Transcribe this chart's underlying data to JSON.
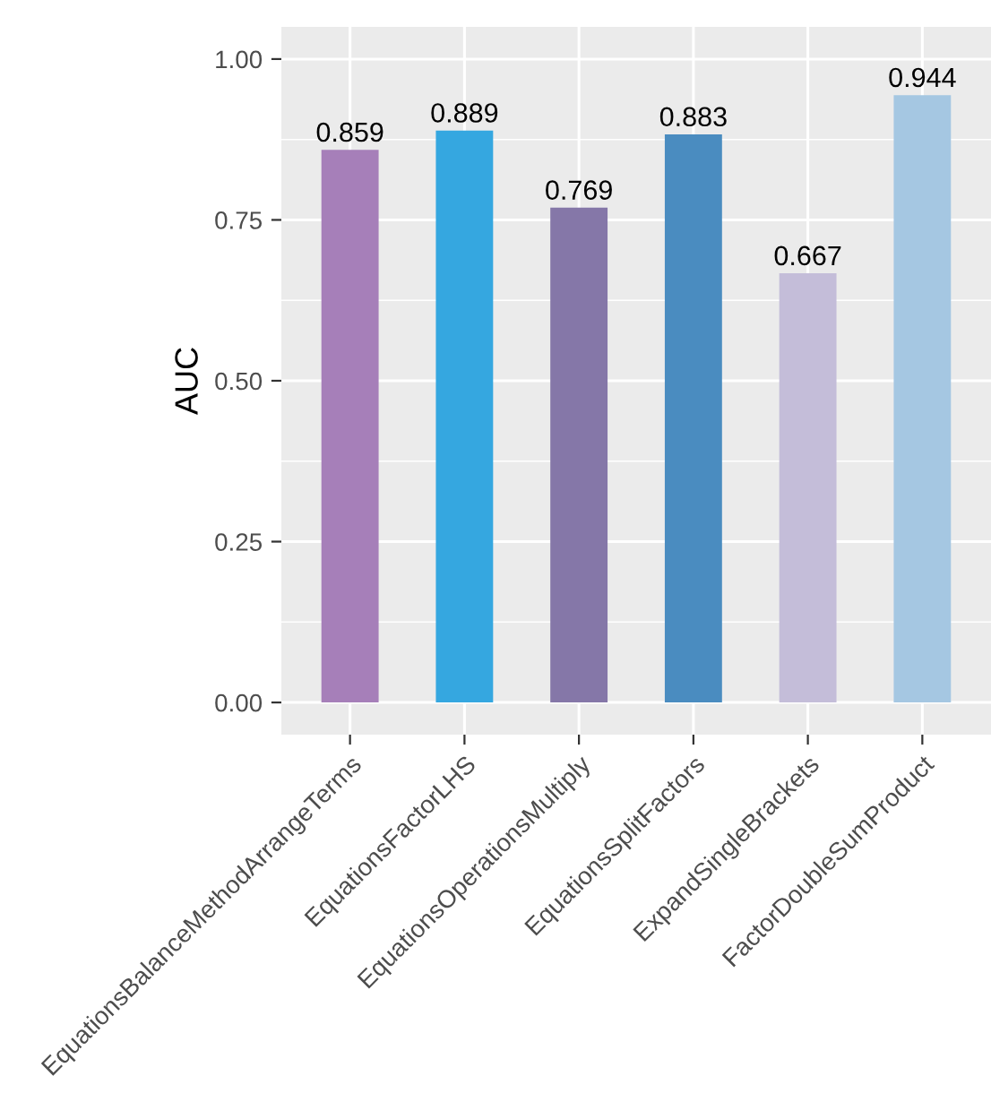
{
  "chart_data": {
    "type": "bar",
    "ylabel": "AUC",
    "categories": [
      "EquationsBalanceMethodArrangeTerms",
      "EquationsFactorLHS",
      "EquationsOperationsMultiply",
      "EquationsSplitFactors",
      "ExpandSingleBrackets",
      "FactorDoubleSumProduct"
    ],
    "values": [
      0.859,
      0.889,
      0.769,
      0.883,
      0.667,
      0.944
    ],
    "colors": [
      "#a67fb9",
      "#35a7e0",
      "#8577a8",
      "#4a8cc0",
      "#c4bdd9",
      "#a5c7e2"
    ],
    "ylim": [
      -0.05,
      1.05
    ],
    "yticks": [
      {
        "value": 0,
        "label": "0.00"
      },
      {
        "value": 0.25,
        "label": "0.25"
      },
      {
        "value": 0.5,
        "label": "0.50"
      },
      {
        "value": 0.75,
        "label": "0.75"
      },
      {
        "value": 1,
        "label": "1.00"
      }
    ],
    "grid": true,
    "data_labels": true
  }
}
